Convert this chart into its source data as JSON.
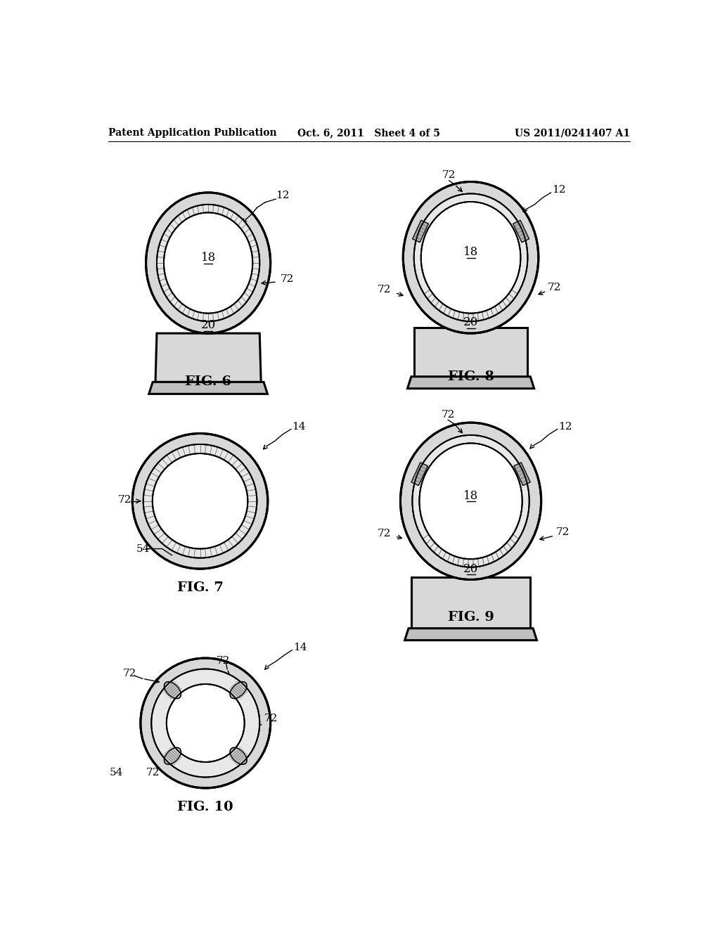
{
  "header_left": "Patent Application Publication",
  "header_mid": "Oct. 6, 2011   Sheet 4 of 5",
  "header_right": "US 2011/0241407 A1",
  "bg_color": "#ffffff",
  "line_color": "#000000",
  "fig6_label": "FIG. 6",
  "fig7_label": "FIG. 7",
  "fig8_label": "FIG. 8",
  "fig9_label": "FIG. 9",
  "fig10_label": "FIG. 10",
  "lw_outer": 2.2,
  "lw_inner": 1.4,
  "gray_outer": "#d8d8d8",
  "gray_mid": "#c0c0c0",
  "gray_dark": "#a8a8a8",
  "gray_pad": "#b0b0b0",
  "hatch_color": "#666666"
}
